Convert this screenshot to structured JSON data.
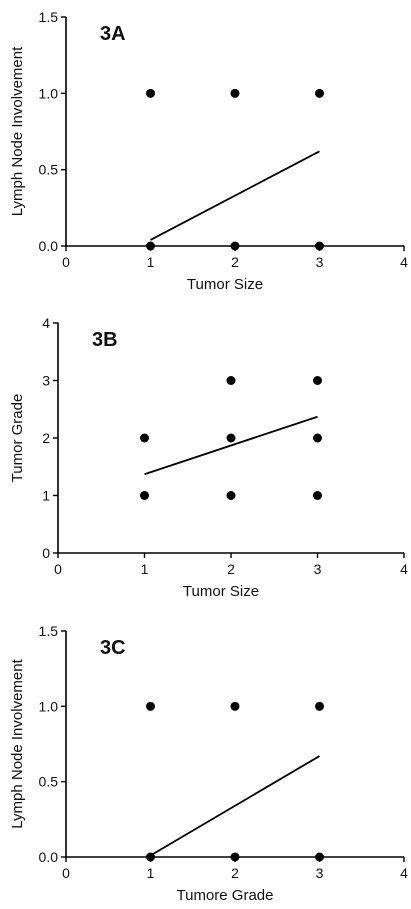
{
  "chart_data": [
    {
      "type": "scatter",
      "tag": "3A",
      "xlabel": "Tumor Size",
      "ylabel": "Lymph Node Involvement",
      "xlim": [
        0,
        4
      ],
      "ylim": [
        0,
        1.5
      ],
      "xticks": [
        "0",
        "1",
        "2",
        "3",
        "4"
      ],
      "yticks": [
        "0.0",
        "0.5",
        "1.0",
        "1.5"
      ],
      "points": [
        {
          "x": 1,
          "y": 1
        },
        {
          "x": 2,
          "y": 1
        },
        {
          "x": 3,
          "y": 1
        },
        {
          "x": 1,
          "y": 0
        },
        {
          "x": 2,
          "y": 0
        },
        {
          "x": 3,
          "y": 0
        }
      ],
      "fit_line": [
        [
          1,
          0.04
        ],
        [
          3,
          0.62
        ]
      ]
    },
    {
      "type": "scatter",
      "tag": "3B",
      "xlabel": "Tumor Size",
      "ylabel": "Tumor Grade",
      "xlim": [
        0,
        4
      ],
      "ylim": [
        0,
        4
      ],
      "xticks": [
        "0",
        "1",
        "2",
        "3",
        "4"
      ],
      "yticks": [
        "0",
        "1",
        "2",
        "3",
        "4"
      ],
      "points": [
        {
          "x": 2,
          "y": 3
        },
        {
          "x": 3,
          "y": 3
        },
        {
          "x": 1,
          "y": 2
        },
        {
          "x": 2,
          "y": 2
        },
        {
          "x": 3,
          "y": 2
        },
        {
          "x": 1,
          "y": 1
        },
        {
          "x": 2,
          "y": 1
        },
        {
          "x": 3,
          "y": 1
        }
      ],
      "fit_line": [
        [
          1,
          1.37
        ],
        [
          3,
          2.37
        ]
      ]
    },
    {
      "type": "scatter",
      "tag": "3C",
      "xlabel": "Tumore Grade",
      "ylabel": "Lymph Node Involvement",
      "xlim": [
        0,
        4
      ],
      "ylim": [
        0,
        1.5
      ],
      "xticks": [
        "0",
        "1",
        "2",
        "3",
        "4"
      ],
      "yticks": [
        "0.0",
        "0.5",
        "1.0",
        "1.5"
      ],
      "points": [
        {
          "x": 1,
          "y": 1
        },
        {
          "x": 2,
          "y": 1
        },
        {
          "x": 3,
          "y": 1
        },
        {
          "x": 1,
          "y": 0
        },
        {
          "x": 2,
          "y": 0
        },
        {
          "x": 3,
          "y": 0
        }
      ],
      "fit_line": [
        [
          1,
          0.01
        ],
        [
          3,
          0.67
        ]
      ]
    }
  ]
}
